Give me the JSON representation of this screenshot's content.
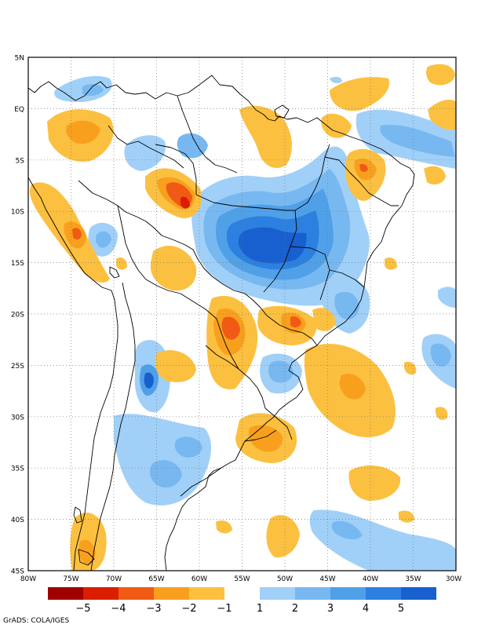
{
  "map": {
    "lat_labels": [
      "5N",
      "EQ",
      "5S",
      "10S",
      "15S",
      "20S",
      "25S",
      "30S",
      "35S",
      "40S",
      "45S"
    ],
    "lon_labels": [
      "80W",
      "75W",
      "70W",
      "65W",
      "60W",
      "55W",
      "50W",
      "45W",
      "40W",
      "35W",
      "30W"
    ],
    "extent": {
      "lon_min": -80,
      "lon_max": -30,
      "lat_min": -45,
      "lat_max": 5
    },
    "gridlines": "dotted"
  },
  "colorbar": {
    "negative_labels": [
      "−5",
      "−4",
      "−3",
      "−2",
      "−1"
    ],
    "positive_labels": [
      "1",
      "2",
      "3",
      "4",
      "5"
    ],
    "negative_colors": [
      "#a00000",
      "#dc1e00",
      "#f05a14",
      "#f8a01e",
      "#fcc040"
    ],
    "positive_colors": [
      "#a0d0f8",
      "#78b8f0",
      "#50a0e8",
      "#2c80e0",
      "#1860d0"
    ]
  },
  "credit": "GrADS: COLA/IGES"
}
